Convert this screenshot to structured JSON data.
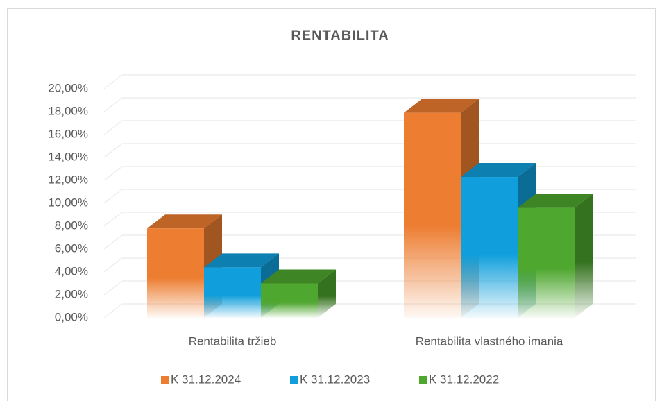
{
  "chart_data": {
    "type": "bar3d",
    "title": "RENTABILITA",
    "categories": [
      "Rentabilita tržieb",
      "Rentabilita vlastného imania"
    ],
    "series": [
      {
        "name": "K 31.12.2024",
        "color": "#ED7D31",
        "values": [
          7.8,
          17.9
        ]
      },
      {
        "name": "K 31.12.2023",
        "color": "#109FDC",
        "values": [
          4.4,
          12.3
        ]
      },
      {
        "name": "K 31.12.2022",
        "color": "#4EA72E",
        "values": [
          3.0,
          9.6
        ]
      }
    ],
    "ylim": [
      0,
      20
    ],
    "yticks": [
      {
        "value": 0,
        "label": "0,00%"
      },
      {
        "value": 2,
        "label": "2,00%"
      },
      {
        "value": 4,
        "label": "4,00%"
      },
      {
        "value": 6,
        "label": "6,00%"
      },
      {
        "value": 8,
        "label": "8,00%"
      },
      {
        "value": 10,
        "label": "10,00%"
      },
      {
        "value": 12,
        "label": "12,00%"
      },
      {
        "value": 14,
        "label": "14,00%"
      },
      {
        "value": 16,
        "label": "16,00%"
      },
      {
        "value": 18,
        "label": "18,00%"
      },
      {
        "value": 20,
        "label": "20,00%"
      }
    ],
    "grid": true,
    "legend": "bottom"
  }
}
